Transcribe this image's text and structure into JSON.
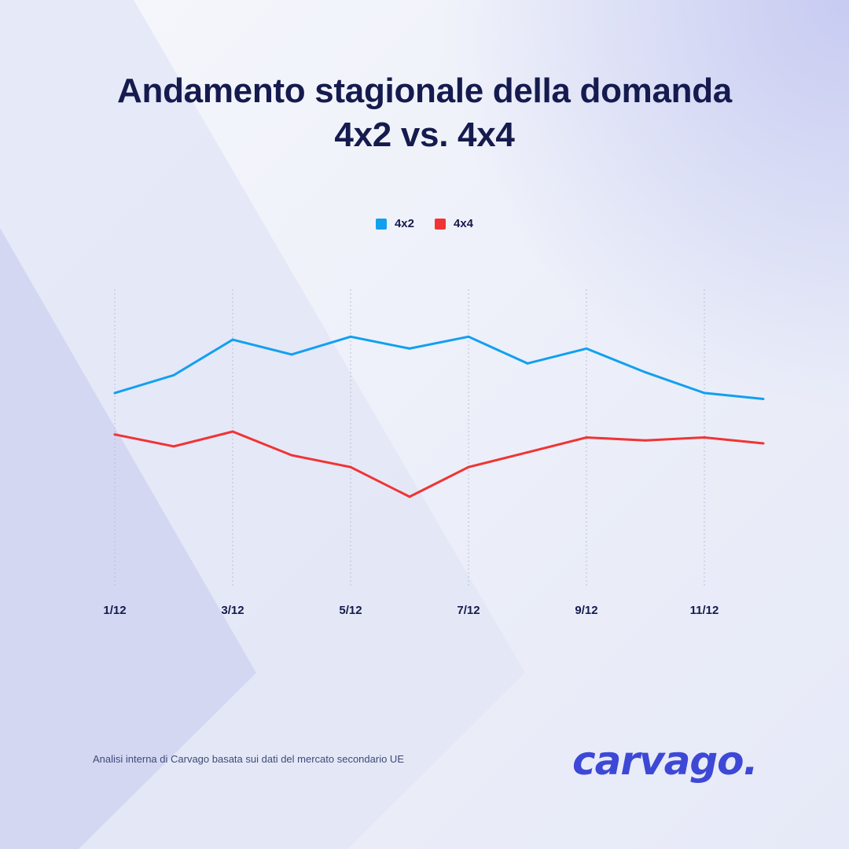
{
  "title": {
    "line1": "Andamento stagionale della domanda",
    "line2": "4x2 vs. 4x4"
  },
  "legend": [
    {
      "label": "4x2",
      "color": "#11a0f0"
    },
    {
      "label": "4x4",
      "color": "#f03434"
    }
  ],
  "chart_data": {
    "type": "line",
    "title": "Andamento stagionale della domanda 4x2 vs. 4x4",
    "x": [
      "1/12",
      "2/12",
      "3/12",
      "4/12",
      "5/12",
      "6/12",
      "7/12",
      "8/12",
      "9/12",
      "10/12",
      "11/12",
      "12/12"
    ],
    "x_tick_labels": [
      "1/12",
      "3/12",
      "5/12",
      "7/12",
      "9/12",
      "11/12"
    ],
    "xlabel": "",
    "ylabel": "",
    "y_axis_labels_visible": false,
    "ylim": [
      0,
      100
    ],
    "grid": "vertical-dashed",
    "legend_position": "top-center",
    "series": [
      {
        "name": "4x2",
        "color": "#11a0f0",
        "values": [
          65,
          71,
          83,
          78,
          84,
          80,
          84,
          75,
          80,
          72,
          65,
          63
        ]
      },
      {
        "name": "4x4",
        "color": "#f03434",
        "values": [
          51,
          47,
          52,
          44,
          40,
          30,
          40,
          45,
          50,
          49,
          50,
          48
        ]
      }
    ]
  },
  "footnote": "Analisi interna di Carvago basata sui dati del mercato secondario UE",
  "logo": {
    "text": "carvago.",
    "color": "#3e48d6"
  }
}
